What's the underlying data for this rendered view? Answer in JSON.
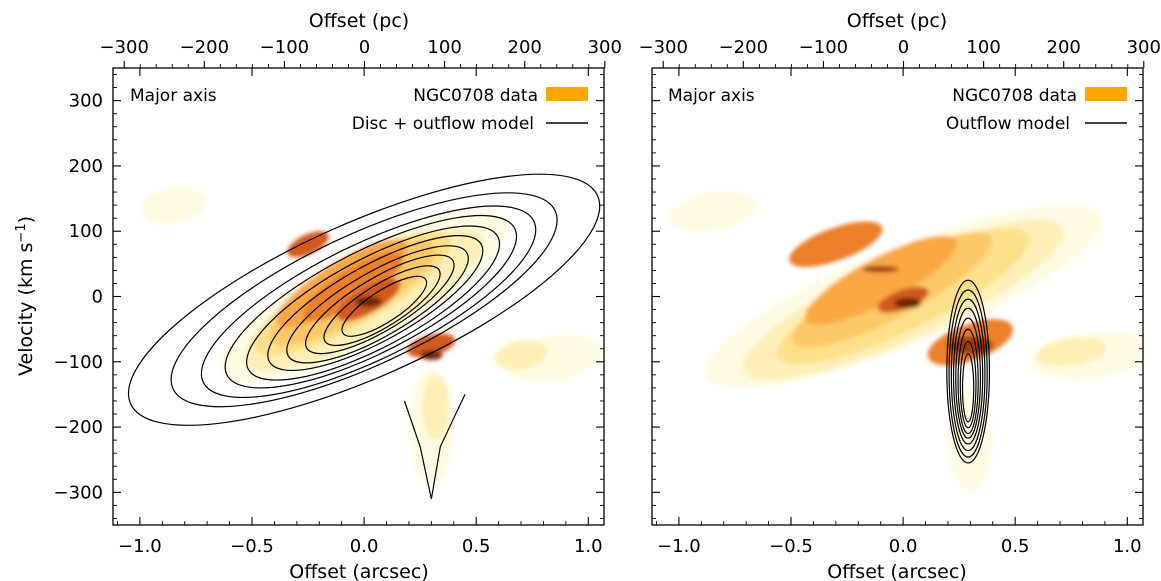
{
  "chart_data": [
    {
      "type": "heatmap",
      "panel": "left",
      "panel_label": "Major axis",
      "xlabel": "Offset (arcsec)",
      "xlabel_top": "Offset (pc)",
      "ylabel": "Velocity (km s⁻¹)",
      "xlim": [
        -1.12,
        1.07
      ],
      "ylim": [
        -350,
        350
      ],
      "xlim_top_pc": [
        -314,
        299
      ],
      "x_ticks": [
        "−1.0",
        "−0.5",
        "0.0",
        "0.5",
        "1.0"
      ],
      "x_tick_values": [
        -1.0,
        -0.5,
        0.0,
        0.5,
        1.0
      ],
      "y_ticks": [
        "−300",
        "−200",
        "−100",
        "0",
        "100",
        "200",
        "300"
      ],
      "y_tick_values": [
        -300,
        -200,
        -100,
        0,
        100,
        200,
        300
      ],
      "top_ticks": [
        "−300",
        "−200",
        "−100",
        "0",
        "100",
        "200",
        "300"
      ],
      "top_tick_values": [
        -300,
        -200,
        -100,
        0,
        100,
        200,
        300
      ],
      "legend": [
        {
          "label": "NGC0708 data",
          "kind": "patch",
          "color": "#ffa500"
        },
        {
          "label": "Disc + outflow model",
          "kind": "line",
          "color": "#000000"
        }
      ],
      "legend_position": "top-right",
      "colormap": [
        "#fffbe3",
        "#fff0b8",
        "#ffe08a",
        "#fdc868",
        "#f9a742",
        "#ec7f2a",
        "#d25a1c",
        "#a13a0e",
        "#6e2506"
      ],
      "data_blobs": [
        {
          "cx": 0.0,
          "cy": 0,
          "sx": 0.72,
          "sy": 70,
          "angle_deg": -28,
          "level": 0
        },
        {
          "cx": 0.0,
          "cy": -5,
          "sx": 0.6,
          "sy": 58,
          "angle_deg": -28,
          "level": 1
        },
        {
          "cx": -0.05,
          "cy": 5,
          "sx": 0.5,
          "sy": 48,
          "angle_deg": -30,
          "level": 2
        },
        {
          "cx": -0.05,
          "cy": 5,
          "sx": 0.42,
          "sy": 40,
          "angle_deg": -30,
          "level": 3
        },
        {
          "cx": -0.1,
          "cy": 20,
          "sx": 0.34,
          "sy": 33,
          "angle_deg": -32,
          "level": 4
        },
        {
          "cx": -0.05,
          "cy": 15,
          "sx": 0.26,
          "sy": 27,
          "angle_deg": -32,
          "level": 5
        },
        {
          "cx": 0.02,
          "cy": -5,
          "sx": 0.16,
          "sy": 20,
          "angle_deg": -30,
          "level": 6
        },
        {
          "cx": 0.3,
          "cy": -75,
          "sx": 0.11,
          "sy": 16,
          "angle_deg": -15,
          "level": 6
        },
        {
          "cx": -0.25,
          "cy": 80,
          "sx": 0.1,
          "sy": 15,
          "angle_deg": -25,
          "level": 6
        },
        {
          "cx": 0.02,
          "cy": -8,
          "sx": 0.06,
          "sy": 8,
          "angle_deg": 0,
          "level": 8
        },
        {
          "cx": 0.3,
          "cy": -90,
          "sx": 0.05,
          "sy": 7,
          "angle_deg": 0,
          "level": 8
        },
        {
          "cx": 0.3,
          "cy": -200,
          "sx": 0.1,
          "sy": 90,
          "angle_deg": 0,
          "level": 0
        },
        {
          "cx": 0.32,
          "cy": -170,
          "sx": 0.06,
          "sy": 50,
          "angle_deg": 0,
          "level": 1
        },
        {
          "cx": -0.85,
          "cy": 140,
          "sx": 0.15,
          "sy": 28,
          "angle_deg": -10,
          "level": 0
        },
        {
          "cx": 0.85,
          "cy": -95,
          "sx": 0.22,
          "sy": 35,
          "angle_deg": -10,
          "level": 0
        },
        {
          "cx": 0.7,
          "cy": -90,
          "sx": 0.12,
          "sy": 22,
          "angle_deg": -10,
          "level": 1
        }
      ],
      "model_contours": [
        {
          "cx": 0.0,
          "cy": -5,
          "sx": 1.14,
          "sy": 118,
          "angle_deg": -24
        },
        {
          "cx": 0.0,
          "cy": -5,
          "sx": 0.94,
          "sy": 100,
          "angle_deg": -25
        },
        {
          "cx": 0.02,
          "cy": -8,
          "sx": 0.82,
          "sy": 88,
          "angle_deg": -26
        },
        {
          "cx": 0.03,
          "cy": -8,
          "sx": 0.72,
          "sy": 78,
          "angle_deg": -27
        },
        {
          "cx": 0.04,
          "cy": -10,
          "sx": 0.63,
          "sy": 68,
          "angle_deg": -28
        },
        {
          "cx": 0.05,
          "cy": -10,
          "sx": 0.54,
          "sy": 58,
          "angle_deg": -29
        },
        {
          "cx": 0.06,
          "cy": -12,
          "sx": 0.46,
          "sy": 49,
          "angle_deg": -30
        },
        {
          "cx": 0.07,
          "cy": -12,
          "sx": 0.38,
          "sy": 40,
          "angle_deg": -31
        },
        {
          "cx": 0.08,
          "cy": -14,
          "sx": 0.3,
          "sy": 32,
          "angle_deg": -32
        },
        {
          "cx": 0.09,
          "cy": -15,
          "sx": 0.22,
          "sy": 24,
          "angle_deg": -33
        }
      ],
      "outflow_tail": [
        [
          0.18,
          -160
        ],
        [
          0.25,
          -230
        ],
        [
          0.3,
          -310
        ],
        [
          0.34,
          -230
        ],
        [
          0.45,
          -150
        ]
      ]
    },
    {
      "type": "heatmap",
      "panel": "right",
      "panel_label": "Major axis",
      "xlabel": "Offset (arcsec)",
      "xlabel_top": "Offset (pc)",
      "xlim": [
        -1.12,
        1.07
      ],
      "ylim": [
        -350,
        350
      ],
      "xlim_top_pc": [
        -314,
        299
      ],
      "x_ticks": [
        "−1.0",
        "−0.5",
        "0.0",
        "0.5",
        "1.0"
      ],
      "x_tick_values": [
        -1.0,
        -0.5,
        0.0,
        0.5,
        1.0
      ],
      "top_ticks": [
        "−300",
        "−200",
        "−100",
        "0",
        "100",
        "200",
        "300"
      ],
      "top_tick_values": [
        -300,
        -200,
        -100,
        0,
        100,
        200,
        300
      ],
      "legend": [
        {
          "label": "NGC0708 data",
          "kind": "patch",
          "color": "#ffa500"
        },
        {
          "label": "Outflow model",
          "kind": "line",
          "color": "#000000"
        }
      ],
      "legend_position": "top-right",
      "colormap": [
        "#fffbe3",
        "#fff0b8",
        "#ffe08a",
        "#fdc868",
        "#f9a742",
        "#ec7f2a",
        "#d25a1c",
        "#a13a0e",
        "#6e2506"
      ],
      "data_blobs": [
        {
          "cx": 0.0,
          "cy": 0,
          "sx": 0.95,
          "sy": 75,
          "angle_deg": -22,
          "level": 0
        },
        {
          "cx": 0.0,
          "cy": -5,
          "sx": 0.78,
          "sy": 62,
          "angle_deg": -24,
          "level": 1
        },
        {
          "cx": 0.0,
          "cy": 0,
          "sx": 0.62,
          "sy": 52,
          "angle_deg": -26,
          "level": 2
        },
        {
          "cx": -0.05,
          "cy": 10,
          "sx": 0.5,
          "sy": 42,
          "angle_deg": -28,
          "level": 3
        },
        {
          "cx": -0.1,
          "cy": 25,
          "sx": 0.38,
          "sy": 34,
          "angle_deg": -28,
          "level": 4
        },
        {
          "cx": -0.3,
          "cy": 80,
          "sx": 0.22,
          "sy": 25,
          "angle_deg": -20,
          "level": 5
        },
        {
          "cx": 0.3,
          "cy": -70,
          "sx": 0.2,
          "sy": 28,
          "angle_deg": -20,
          "level": 5
        },
        {
          "cx": 0.0,
          "cy": -5,
          "sx": 0.12,
          "sy": 15,
          "angle_deg": -20,
          "level": 6
        },
        {
          "cx": 0.3,
          "cy": -75,
          "sx": 0.1,
          "sy": 14,
          "angle_deg": 0,
          "level": 7
        },
        {
          "cx": 0.02,
          "cy": -10,
          "sx": 0.06,
          "sy": 8,
          "angle_deg": 0,
          "level": 8
        },
        {
          "cx": -0.1,
          "cy": 42,
          "sx": 0.08,
          "sy": 5,
          "angle_deg": 0,
          "level": 7
        },
        {
          "cx": 0.3,
          "cy": -220,
          "sx": 0.1,
          "sy": 80,
          "angle_deg": 0,
          "level": 0
        },
        {
          "cx": -0.85,
          "cy": 130,
          "sx": 0.2,
          "sy": 30,
          "angle_deg": -10,
          "level": 0
        },
        {
          "cx": 0.85,
          "cy": -90,
          "sx": 0.28,
          "sy": 35,
          "angle_deg": -8,
          "level": 0
        },
        {
          "cx": 0.75,
          "cy": -85,
          "sx": 0.16,
          "sy": 22,
          "angle_deg": -8,
          "level": 1
        }
      ],
      "model_contours": [
        {
          "cx": 0.29,
          "cy": -115,
          "sx": 0.095,
          "sy": 140,
          "angle_deg": 0
        },
        {
          "cx": 0.29,
          "cy": -118,
          "sx": 0.085,
          "sy": 128,
          "angle_deg": 0
        },
        {
          "cx": 0.29,
          "cy": -120,
          "sx": 0.075,
          "sy": 116,
          "angle_deg": 0
        },
        {
          "cx": 0.29,
          "cy": -122,
          "sx": 0.065,
          "sy": 104,
          "angle_deg": 0
        },
        {
          "cx": 0.29,
          "cy": -125,
          "sx": 0.055,
          "sy": 92,
          "angle_deg": 0
        },
        {
          "cx": 0.29,
          "cy": -130,
          "sx": 0.045,
          "sy": 80,
          "angle_deg": 0
        },
        {
          "cx": 0.29,
          "cy": -135,
          "sx": 0.035,
          "sy": 66,
          "angle_deg": 0
        },
        {
          "cx": 0.29,
          "cy": -140,
          "sx": 0.025,
          "sy": 52,
          "angle_deg": 0
        }
      ]
    }
  ]
}
